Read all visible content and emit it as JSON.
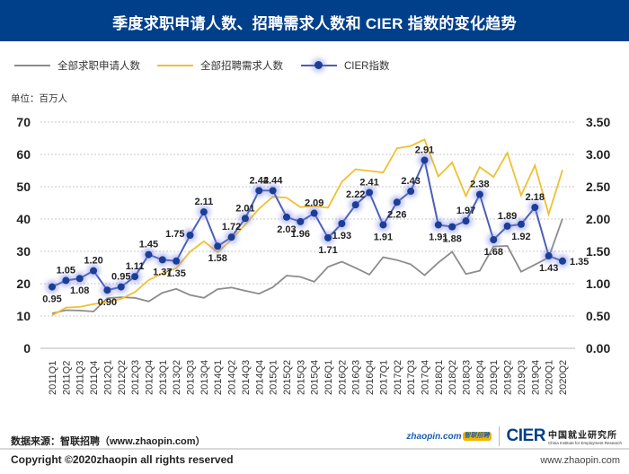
{
  "header": {
    "title": "季度求职申请人数、招聘需求人数和 CIER 指数的变化趋势"
  },
  "unit_label": "单位：百万人",
  "footer": {
    "source": "数据来源：智联招聘（www.zhaopin.com）",
    "copyright": "Copyright ©2020zhaopin all rights reserved",
    "url": "www.zhaopin.com",
    "logo_zhaopin": "zhaopin.com",
    "logo_zhaopin_badge": "智联招聘",
    "logo_cier": "CIER",
    "logo_cier_cn": "中国就业研究所",
    "logo_cier_en": "China Institute for Employment Research"
  },
  "colors": {
    "header_bg": "#003f8a",
    "applicants": "#8c8c8c",
    "demand": "#f0c030",
    "cier": "#4a5fb5",
    "cier_marker": "#1b3e96"
  },
  "chart_data": {
    "type": "line",
    "title": "季度求职申请人数、招聘需求人数和 CIER 指数的变化趋势",
    "xlabel": "",
    "ylabel": "单位：百万人",
    "ylabel_right": "",
    "ylim": [
      0,
      70
    ],
    "y_ticks": [
      "0",
      "10",
      "20",
      "30",
      "40",
      "50",
      "60",
      "70"
    ],
    "y2lim": [
      0,
      3.5
    ],
    "y2_ticks": [
      "0.00",
      "0.50",
      "1.00",
      "1.50",
      "2.00",
      "2.50",
      "3.00",
      "3.50"
    ],
    "grid": true,
    "legend_position": "top",
    "categories": [
      "2011Q1",
      "2011Q2",
      "2011Q3",
      "2011Q4",
      "2012Q1",
      "2012Q2",
      "2012Q3",
      "2012Q4",
      "2013Q1",
      "2013Q2",
      "2013Q3",
      "2013Q4",
      "2014Q1",
      "2014Q2",
      "2014Q3",
      "2014Q4",
      "2015Q1",
      "2015Q2",
      "2015Q3",
      "2015Q4",
      "2016Q1",
      "2016Q2",
      "2016Q3",
      "2016Q4",
      "2017Q1",
      "2017Q2",
      "2017Q3",
      "2017Q4",
      "2018Q1",
      "2018Q2",
      "2018Q3",
      "2018Q4",
      "2019Q1",
      "2019Q2",
      "2019Q3",
      "2019Q4",
      "2020Q1",
      "2020Q2"
    ],
    "series": [
      {
        "name": "全部求职申请人数",
        "axis": "left",
        "values": [
          10.8,
          11.8,
          11.7,
          11.4,
          15.5,
          15.8,
          15.6,
          14.5,
          17.2,
          18.4,
          16.5,
          15.6,
          18.3,
          18.8,
          17.8,
          16.9,
          18.9,
          22.5,
          22.1,
          20.6,
          25.2,
          26.8,
          24.9,
          22.8,
          28.2,
          27.3,
          26.0,
          22.6,
          26.5,
          29.9,
          23.0,
          24.0,
          31.5,
          31.7,
          23.7,
          25.9,
          28.1,
          40.1
        ]
      },
      {
        "name": "全部招聘需求人数",
        "axis": "left",
        "values": [
          10.2,
          12.6,
          12.8,
          13.7,
          14.3,
          15.3,
          17.4,
          21.1,
          23.2,
          24.8,
          29.9,
          33.1,
          29.7,
          33.6,
          38.3,
          43.2,
          46.9,
          46.6,
          43.7,
          44.0,
          43.5,
          51.5,
          55.4,
          54.9,
          54.4,
          61.9,
          62.6,
          64.6,
          53.2,
          57.5,
          47.1,
          56.1,
          53.0,
          60.5,
          47.3,
          56.6,
          41.5,
          55.2
        ]
      },
      {
        "name": "CIER指数",
        "axis": "right",
        "values": [
          0.95,
          1.05,
          1.08,
          1.2,
          0.9,
          0.95,
          1.11,
          1.45,
          1.37,
          1.35,
          1.75,
          2.11,
          1.58,
          1.72,
          2.01,
          2.44,
          2.44,
          2.03,
          1.96,
          2.09,
          1.71,
          1.93,
          2.22,
          2.41,
          1.91,
          2.26,
          2.43,
          2.91,
          1.91,
          1.88,
          1.97,
          2.38,
          1.68,
          1.89,
          1.92,
          2.18,
          1.43,
          1.35
        ],
        "labels": [
          "0.95",
          "1.05",
          "1.08",
          "1.20",
          "0.90",
          "0.95",
          "1.11",
          "1.45",
          "1.37",
          "1.35",
          "1.75",
          "2.11",
          "1.58",
          "1.72",
          "2.01",
          "2.44",
          "2.44",
          "2.03",
          "1.96",
          "2.09",
          "1.71",
          "1.93",
          "2.22",
          "2.41",
          "1.91",
          "2.26",
          "2.43",
          "2.91",
          "1.91",
          "1.88",
          "1.97",
          "2.38",
          "1.68",
          "1.89",
          "1.92",
          "2.18",
          "1.43",
          "1.35"
        ]
      }
    ]
  }
}
